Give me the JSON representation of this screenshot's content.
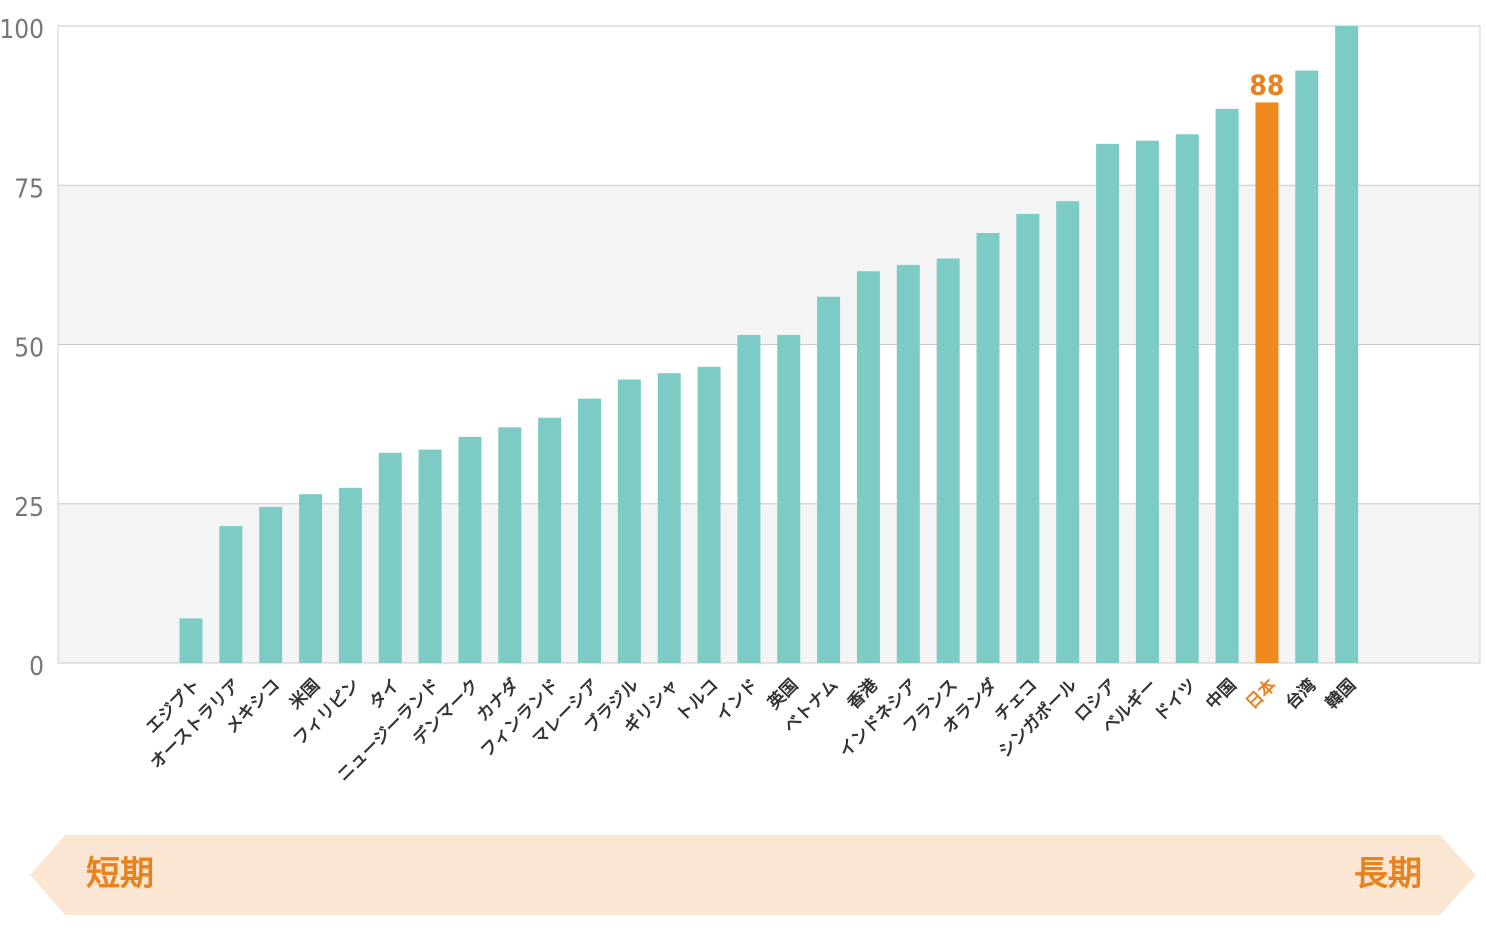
{
  "chart_data": {
    "type": "bar",
    "categories": [
      "エジプト",
      "オーストラリア",
      "メキシコ",
      "米国",
      "フィリピン",
      "タイ",
      "ニュージーランド",
      "デンマーク",
      "カナダ",
      "フィンランド",
      "マレーシア",
      "ブラジル",
      "ギリシャ",
      "トルコ",
      "インド",
      "英国",
      "ベトナム",
      "香港",
      "インドネシア",
      "フランス",
      "オランダ",
      "チェコ",
      "シンガポール",
      "ロシア",
      "ベルギー",
      "ドイツ",
      "中国",
      "日本",
      "台湾",
      "韓国"
    ],
    "values": [
      7,
      21.5,
      24.5,
      26.5,
      27.5,
      33,
      33.5,
      35.5,
      37,
      38.5,
      41.5,
      44.5,
      45.5,
      46.5,
      51.5,
      51.5,
      57.5,
      61.5,
      62.5,
      63.5,
      67.5,
      70.5,
      72.5,
      81.5,
      82,
      83,
      87,
      88,
      93,
      100
    ],
    "highlight": "日本",
    "highlight_value_label": "88",
    "yticks": [
      "0",
      "25",
      "50",
      "75",
      "100"
    ],
    "ylim": [
      0,
      100
    ],
    "grid": "horizontal bands",
    "colors": {
      "bar": "#7ccbc4",
      "highlight": "#f08a1e",
      "band": "#f4f4f4",
      "arrow": "#fbe6d3",
      "arrow_text": "#e8821e"
    }
  },
  "arrow": {
    "left_label": "短期",
    "right_label": "長期"
  }
}
